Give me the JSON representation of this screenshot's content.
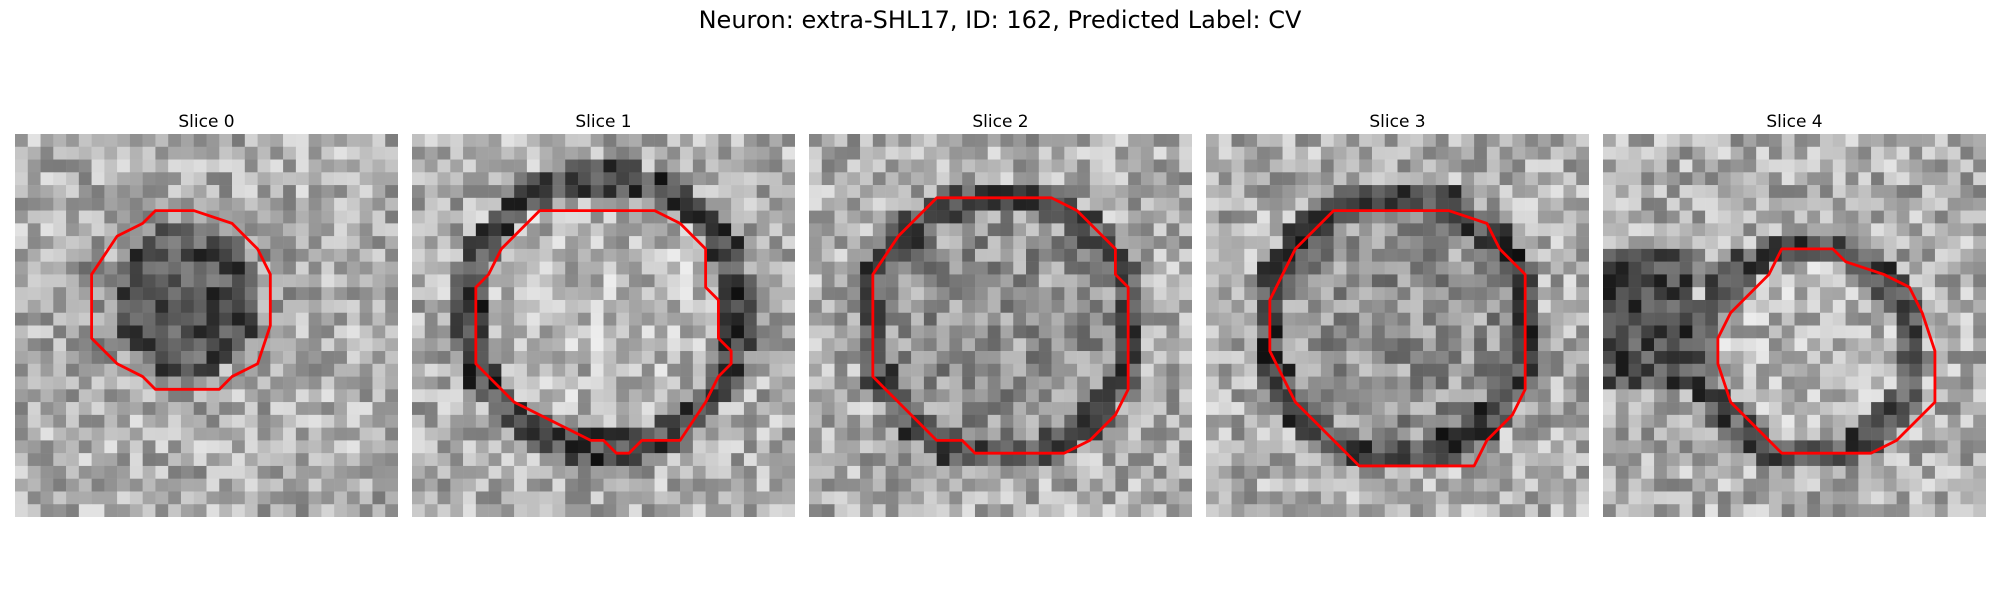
{
  "figure": {
    "title": "Neuron: extra-SHL17, ID: 162, Predicted Label: CV",
    "outline_color": "#ff0000"
  },
  "panels": [
    {
      "label": "Slice 0",
      "center": "dark"
    },
    {
      "label": "Slice 1",
      "center": "light"
    },
    {
      "label": "Slice 2",
      "center": "mid"
    },
    {
      "label": "Slice 3",
      "center": "mid"
    },
    {
      "label": "Slice 4",
      "center": "light"
    }
  ]
}
